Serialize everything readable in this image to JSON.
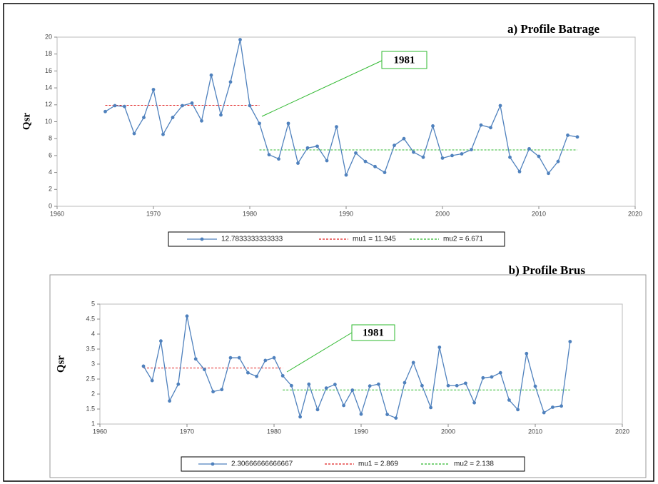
{
  "chart_data": [
    {
      "type": "line",
      "title": "a) Profile Batrage",
      "y_label": "Qsr",
      "x": [
        1965,
        1966,
        1967,
        1968,
        1969,
        1970,
        1971,
        1972,
        1973,
        1974,
        1975,
        1976,
        1977,
        1978,
        1979,
        1980,
        1981,
        1982,
        1983,
        1984,
        1985,
        1986,
        1987,
        1988,
        1989,
        1990,
        1991,
        1992,
        1993,
        1994,
        1995,
        1996,
        1997,
        1998,
        1999,
        2000,
        2001,
        2002,
        2003,
        2004,
        2005,
        2006,
        2007,
        2008,
        2009,
        2010,
        2011,
        2012,
        2013,
        2014
      ],
      "series": [
        {
          "name": "12.7833333333333",
          "color": "#4f81bd",
          "values": [
            11.2,
            11.9,
            11.8,
            8.6,
            10.5,
            13.8,
            8.5,
            10.5,
            11.9,
            12.2,
            10.1,
            15.5,
            10.8,
            14.7,
            19.7,
            11.9,
            9.8,
            6.1,
            5.6,
            9.8,
            5.1,
            6.9,
            7.1,
            5.4,
            9.4,
            3.7,
            6.3,
            5.3,
            4.7,
            4.0,
            7.2,
            8.0,
            6.4,
            5.8,
            9.5,
            5.7,
            6.0,
            6.2,
            6.7,
            9.6,
            9.3,
            11.9,
            5.8,
            4.1,
            6.8,
            5.9,
            3.9,
            5.3,
            8.4,
            8.2
          ]
        }
      ],
      "mu": [
        {
          "name": "mu1 = 11.945",
          "value": 11.945,
          "xrange": [
            1965,
            1981
          ],
          "color": "#e02020"
        },
        {
          "name": "mu2 = 6.671",
          "value": 6.671,
          "xrange": [
            1981,
            2014
          ],
          "color": "#2eb82e"
        }
      ],
      "annotation": "1981",
      "xlim": [
        1960,
        2020
      ],
      "xticks": [
        1960,
        1970,
        1980,
        1990,
        2000,
        2010,
        2020
      ],
      "ylim": [
        0,
        20
      ],
      "yticks": [
        0,
        2,
        4,
        6,
        8,
        10,
        12,
        14,
        16,
        18,
        20
      ],
      "grid": false
    },
    {
      "type": "line",
      "title": "b) Profile Brus",
      "y_label": "Qsr",
      "x": [
        1965,
        1966,
        1967,
        1968,
        1969,
        1970,
        1971,
        1972,
        1973,
        1974,
        1975,
        1976,
        1977,
        1978,
        1979,
        1980,
        1981,
        1982,
        1983,
        1984,
        1985,
        1986,
        1987,
        1988,
        1989,
        1990,
        1991,
        1992,
        1993,
        1994,
        1995,
        1996,
        1997,
        1998,
        1999,
        2000,
        2001,
        2002,
        2003,
        2004,
        2005,
        2006,
        2007,
        2008,
        2009,
        2010,
        2011,
        2012,
        2013,
        2014
      ],
      "series": [
        {
          "name": "2.30666666666667",
          "color": "#4f81bd",
          "values": [
            2.93,
            2.45,
            3.77,
            1.77,
            2.33,
            4.6,
            3.17,
            2.82,
            2.08,
            2.15,
            3.21,
            3.21,
            2.71,
            2.59,
            3.12,
            3.21,
            2.61,
            2.28,
            1.24,
            2.33,
            1.48,
            2.2,
            2.32,
            1.62,
            2.13,
            1.33,
            2.27,
            2.33,
            1.32,
            1.2,
            2.38,
            3.05,
            2.28,
            1.55,
            3.56,
            2.28,
            2.28,
            2.36,
            1.71,
            2.54,
            2.57,
            2.71,
            1.8,
            1.48,
            3.35,
            2.26,
            1.38,
            1.56,
            1.6,
            3.75
          ]
        }
      ],
      "mu": [
        {
          "name": "mu1 = 2.869",
          "value": 2.869,
          "xrange": [
            1965,
            1981
          ],
          "color": "#e02020"
        },
        {
          "name": "mu2 = 2.138",
          "value": 2.138,
          "xrange": [
            1981,
            2014
          ],
          "color": "#2eb82e"
        }
      ],
      "annotation": "1981",
      "xlim": [
        1960,
        2020
      ],
      "xticks": [
        1960,
        1970,
        1980,
        1990,
        2000,
        2010,
        2020
      ],
      "ylim": [
        1,
        5
      ],
      "yticks": [
        1,
        1.5,
        2,
        2.5,
        3,
        3.5,
        4,
        4.5,
        5
      ],
      "grid": false
    }
  ]
}
